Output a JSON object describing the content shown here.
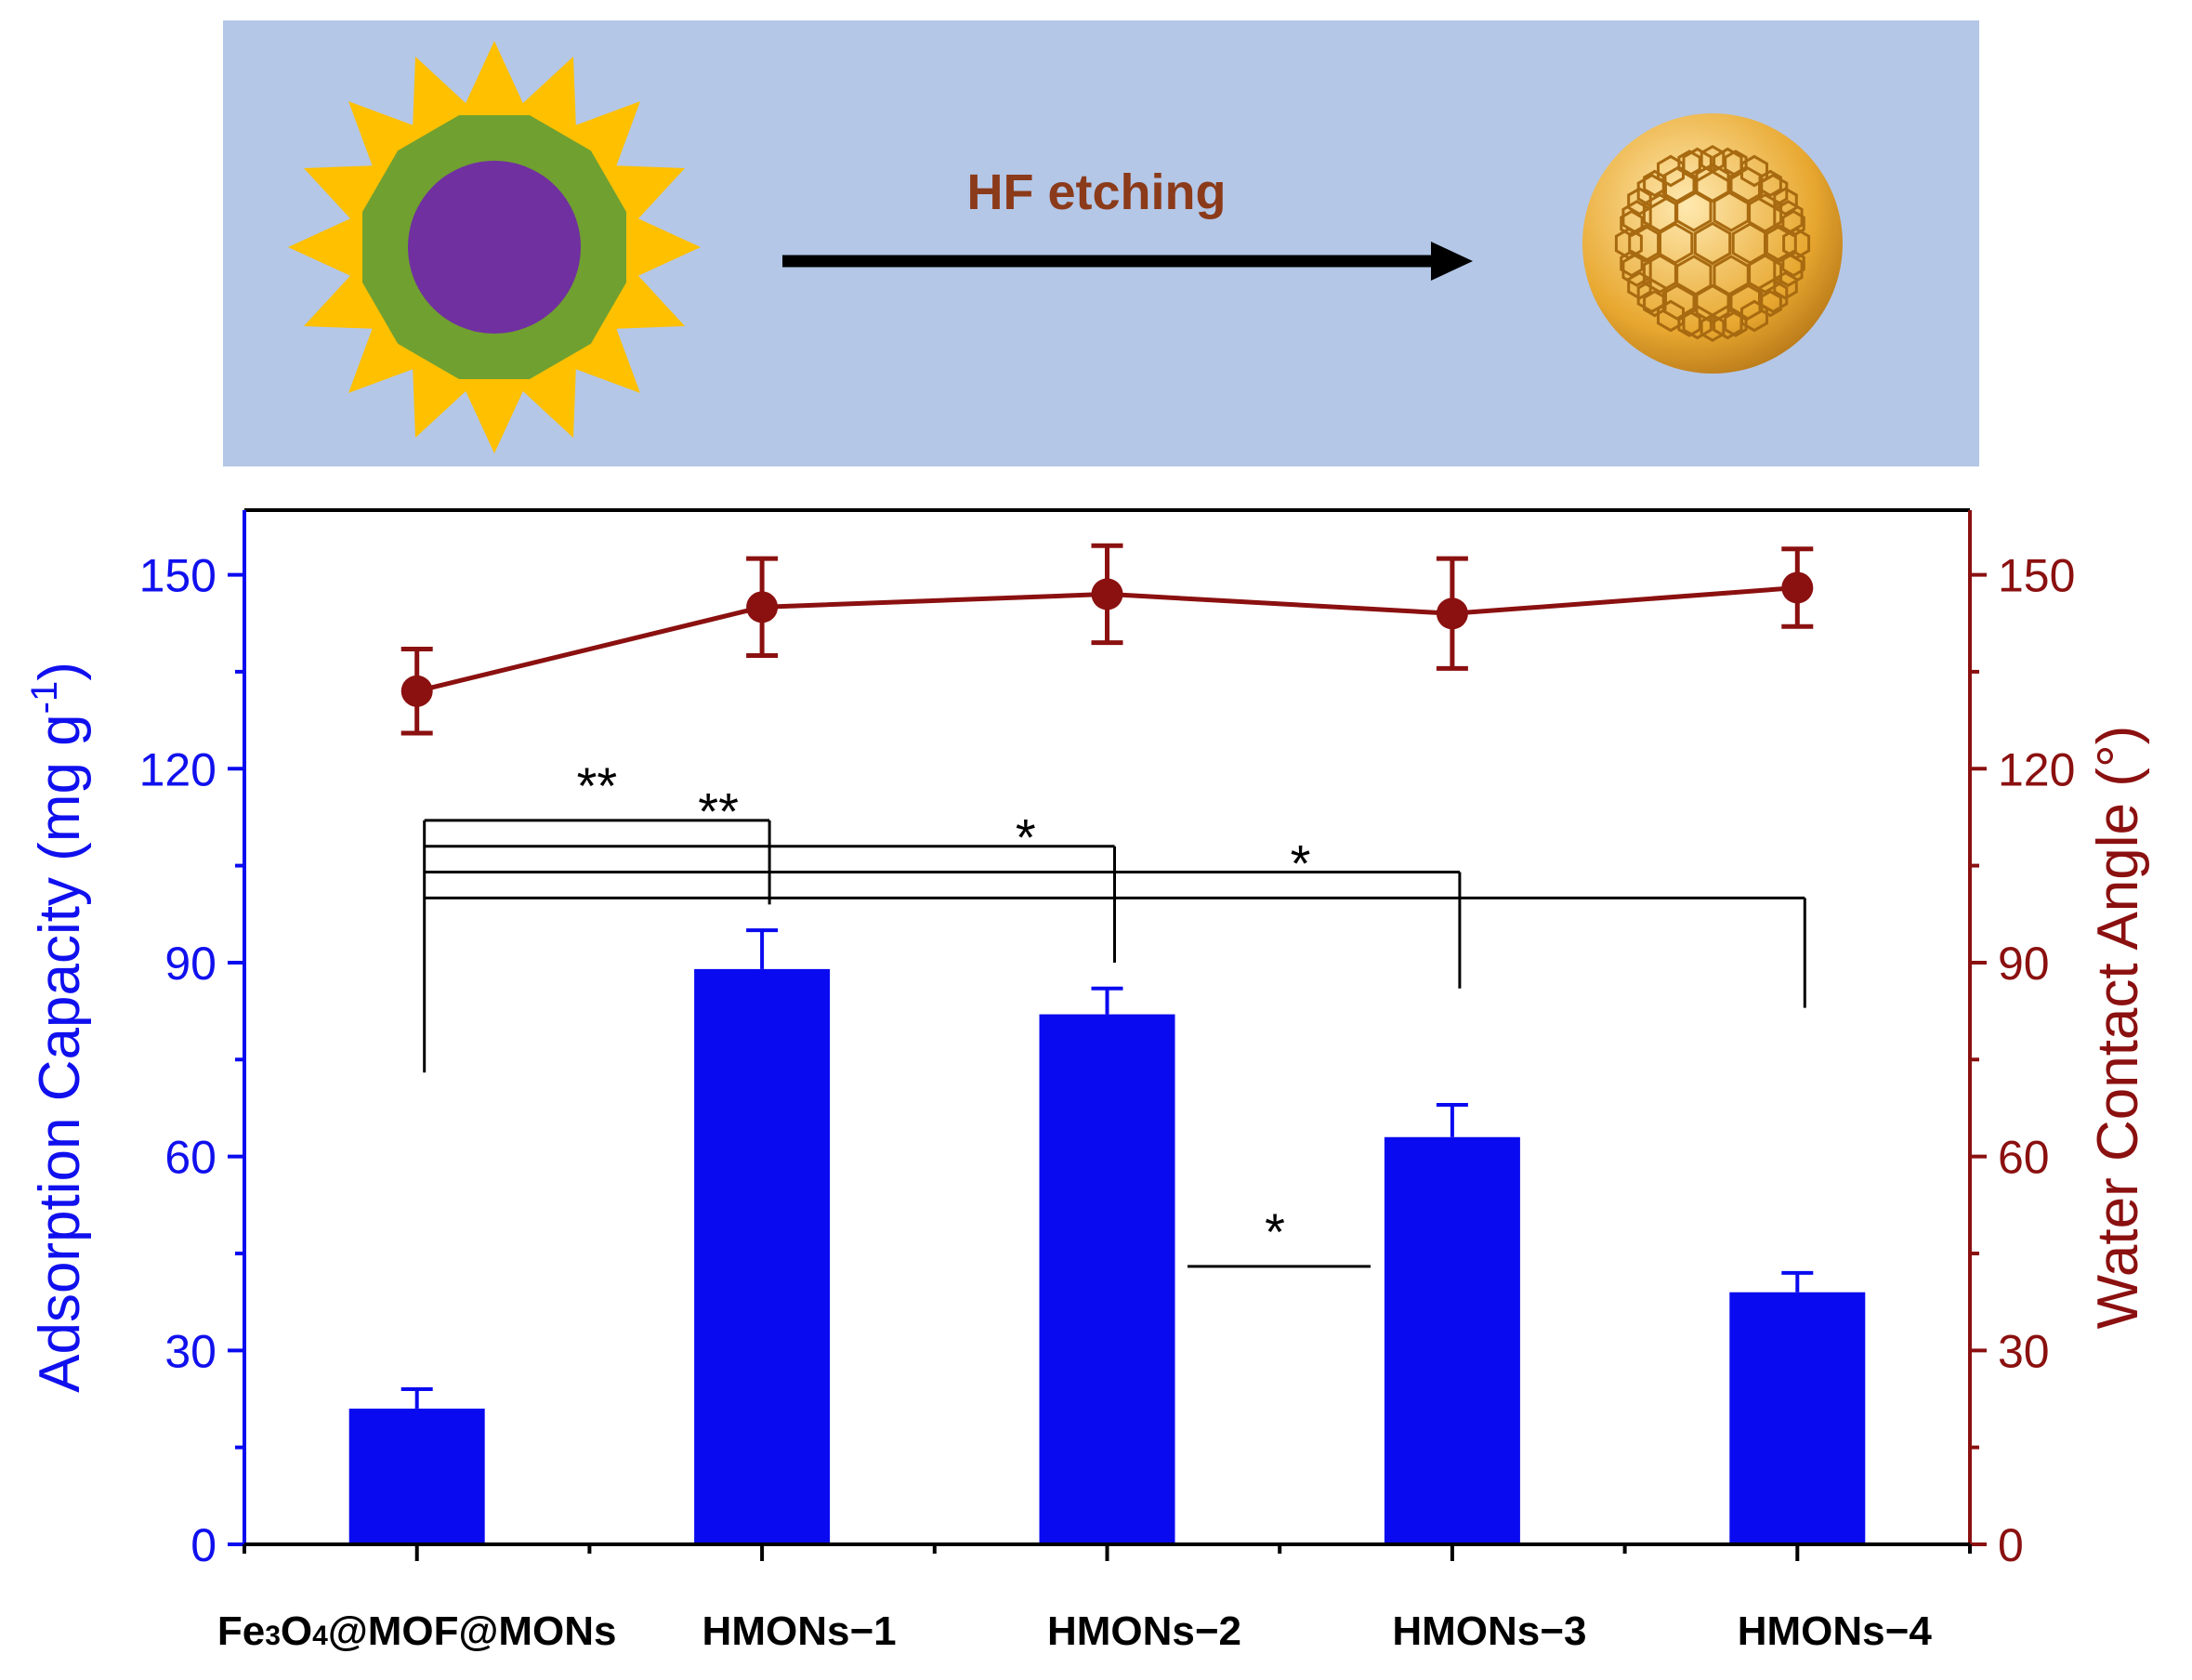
{
  "scheme": {
    "arrow_label": "HF etching",
    "background_color": "#b4c7e7",
    "core_color": "#7030a0",
    "shell_color": "#70a030",
    "spike_color": "#ffc000",
    "cage_color": "#e8a830"
  },
  "chart_data": {
    "type": "bar+line",
    "categories": [
      "Fe3O4@MOF@MONs",
      "HMONs−1",
      "HMONs−2",
      "HMONs−3",
      "HMONs−4"
    ],
    "category_labels": [
      {
        "parts": [
          "Fe",
          "3",
          "O",
          "4",
          "@MOF@MONs"
        ]
      },
      {
        "parts": [
          "HMONs−1"
        ]
      },
      {
        "parts": [
          "HMONs−2"
        ]
      },
      {
        "parts": [
          "HMONs−3"
        ]
      },
      {
        "parts": [
          "HMONs−4"
        ]
      }
    ],
    "bars": {
      "axis": "left",
      "color": "#0a0af0",
      "values": [
        21,
        89,
        82,
        63,
        39
      ],
      "errors": [
        3,
        6,
        4,
        5,
        3
      ]
    },
    "line": {
      "axis": "right",
      "color": "#8b1010",
      "values": [
        132,
        145,
        147,
        144,
        148
      ],
      "errors": [
        6.5,
        7.5,
        7.5,
        8.5,
        6
      ]
    },
    "ylabel_left": "Adsorption Capacity (mg g",
    "ylabel_left_sup": "-1",
    "ylabel_left_end": ")",
    "ylabel_right": "Water Contact Angle (°)",
    "ylim_left": [
      0,
      160
    ],
    "ylim_right": [
      0,
      160
    ],
    "yticks_left": [
      "0",
      "30",
      "60",
      "90",
      "120",
      "150"
    ],
    "yticks_right": [
      "0",
      "30",
      "60",
      "90",
      "120",
      "150"
    ],
    "significance": [
      {
        "from": 0,
        "to": 1,
        "label": "**"
      },
      {
        "from": 0,
        "to": 2,
        "label": "**"
      },
      {
        "from": 0,
        "to": 3,
        "label": "*"
      },
      {
        "from": 0,
        "to": 4,
        "label": "*"
      },
      {
        "label": "*"
      }
    ]
  }
}
